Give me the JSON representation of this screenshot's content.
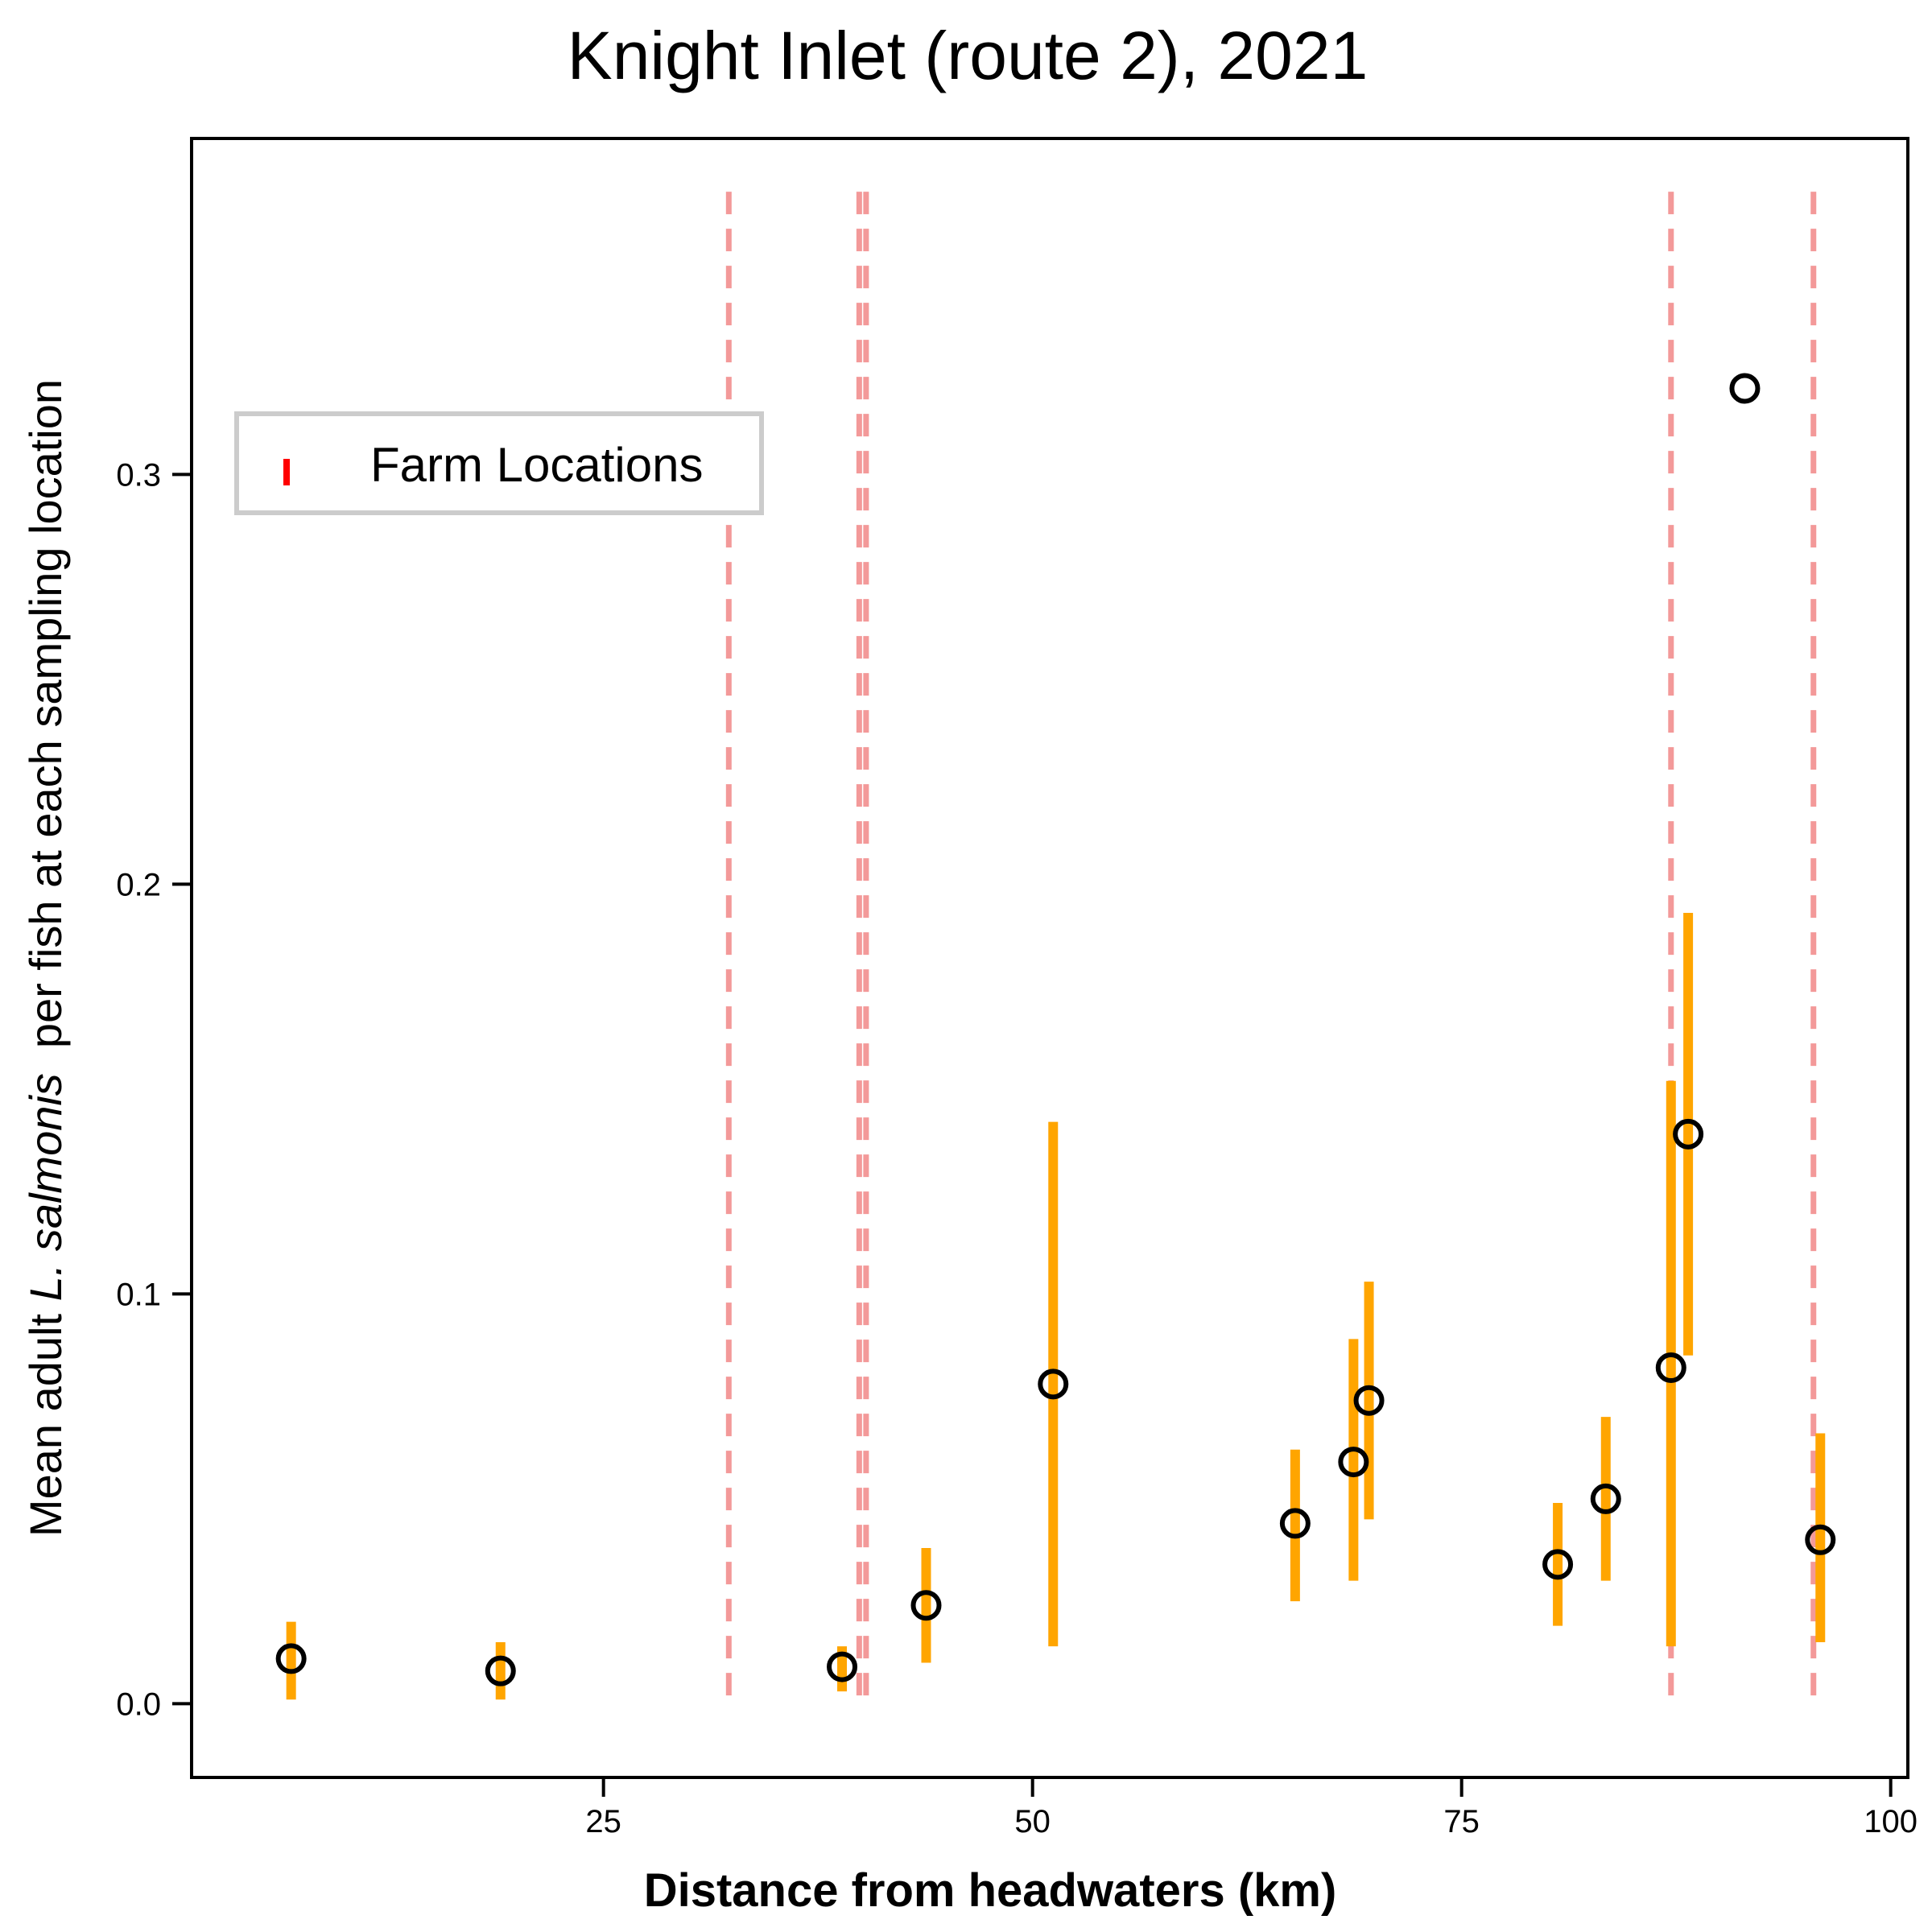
{
  "chart_data": {
    "type": "scatter",
    "title": "Knight Inlet (route 2), 2021",
    "xlabel": "Distance from headwaters (km)",
    "ylabel": {
      "prefix": "Mean adult ",
      "species": "L. salmonis",
      "suffix": "  per fish at each sampling location"
    },
    "xlim": [
      1,
      101
    ],
    "ylim": [
      -0.018,
      0.382
    ],
    "xticks": [
      25,
      50,
      75,
      100
    ],
    "yticks": [
      0.0,
      0.1,
      0.2,
      0.3
    ],
    "xtick_labels": [
      "25",
      "50",
      "75",
      "100"
    ],
    "ytick_labels": [
      "0.0",
      "0.1",
      "0.2",
      "0.3"
    ],
    "grid": false,
    "legend": {
      "placement": "upper-left",
      "entries": [
        {
          "label": "Farm Locations",
          "color": "#ff0000"
        }
      ]
    },
    "farm_locations": {
      "name": "Farm Locations",
      "color": "#f08080",
      "x": [
        32.3,
        39.9,
        40.3,
        87.2,
        95.5
      ],
      "y_range": [
        0.0,
        0.369
      ]
    },
    "series": [
      {
        "marker": "open-circle",
        "marker_color": "#000000",
        "errorbar_color": "#ffa500",
        "points": [
          {
            "x": 6.8,
            "y": 0.011,
            "low": 0.001,
            "high": 0.02
          },
          {
            "x": 19.0,
            "y": 0.008,
            "low": 0.001,
            "high": 0.015
          },
          {
            "x": 38.9,
            "y": 0.009,
            "low": 0.003,
            "high": 0.014
          },
          {
            "x": 43.8,
            "y": 0.024,
            "low": 0.01,
            "high": 0.038
          },
          {
            "x": 51.2,
            "y": 0.078,
            "low": 0.014,
            "high": 0.142
          },
          {
            "x": 65.3,
            "y": 0.044,
            "low": 0.025,
            "high": 0.062
          },
          {
            "x": 68.7,
            "y": 0.059,
            "low": 0.03,
            "high": 0.089
          },
          {
            "x": 69.6,
            "y": 0.074,
            "low": 0.045,
            "high": 0.103
          },
          {
            "x": 80.6,
            "y": 0.034,
            "low": 0.019,
            "high": 0.049
          },
          {
            "x": 83.4,
            "y": 0.05,
            "low": 0.03,
            "high": 0.07
          },
          {
            "x": 87.2,
            "y": 0.082,
            "low": 0.014,
            "high": 0.152
          },
          {
            "x": 88.2,
            "y": 0.139,
            "low": 0.085,
            "high": 0.193
          },
          {
            "x": 91.5,
            "y": 0.321,
            "low": 0.321,
            "high": 0.321
          },
          {
            "x": 95.9,
            "y": 0.04,
            "low": 0.015,
            "high": 0.066
          }
        ]
      }
    ]
  }
}
